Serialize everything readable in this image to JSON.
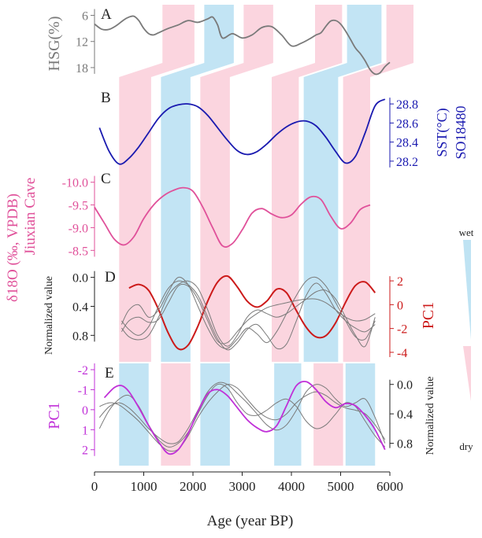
{
  "colors": {
    "pink": "#fbd3dd",
    "blue": "#bfe3f3",
    "gray": "#7a7a7a",
    "navy": "#1a1ab0",
    "magenta": "#e0519a",
    "red": "#cc1a1a",
    "purple": "#c030d8",
    "dark": "#222222"
  },
  "chart_data": {
    "type": "line",
    "xlabel": "Age (year BP)",
    "xlim": [
      0,
      6000
    ],
    "xticks": [
      0,
      1000,
      2000,
      3000,
      4000,
      5000,
      6000
    ],
    "panels": [
      {
        "letter": "A",
        "ylabel": "HSG(%)",
        "ylabel_side": "left",
        "ylabel_color": "gray",
        "yticks": [
          6,
          12,
          18
        ],
        "ylim": [
          5,
          20
        ],
        "reversed": true,
        "series": [
          {
            "color": "gray",
            "x": [
              0,
              150,
              300,
              450,
              600,
              700,
              800,
              900,
              1000,
              1100,
              1200,
              1300,
              1500,
              1700,
              1900,
              2100,
              2300,
              2400,
              2500,
              2600,
              2800,
              3000,
              3200,
              3400,
              3600,
              3800,
              4000,
              4200,
              4400,
              4500,
              4600,
              4700,
              4800,
              4900,
              5000,
              5100,
              5200,
              5300,
              5400,
              5500,
              5600,
              5700,
              5800,
              5900,
              6000
            ],
            "y": [
              8,
              9.2,
              9.2,
              8.3,
              7,
              6.4,
              6.2,
              7.2,
              9,
              10.2,
              10.5,
              10,
              9,
              8.2,
              7.2,
              7.6,
              6.8,
              6.4,
              8.2,
              11.2,
              10.2,
              11.2,
              10.5,
              8.8,
              8.6,
              10.5,
              13,
              12.4,
              11.2,
              10.5,
              10,
              8.5,
              7.3,
              7.2,
              8,
              9.6,
              11.5,
              13.5,
              14.8,
              16.5,
              18.5,
              19.5,
              19.2,
              17.8,
              16.8
            ]
          }
        ]
      },
      {
        "letter": "B",
        "ylabel": "SST(°C)",
        "ylabel2": "SO18480",
        "ylabel_side": "right",
        "ylabel_color": "navy",
        "yticks": [
          28.2,
          28.4,
          28.6,
          28.8
        ],
        "ylim": [
          28.1,
          28.9
        ],
        "reversed": false,
        "series": [
          {
            "color": "navy",
            "x": [
              100,
              300,
              500,
              700,
              900,
              1100,
              1300,
              1500,
              1700,
              1900,
              2100,
              2300,
              2500,
              2700,
              2900,
              3100,
              3300,
              3500,
              3700,
              3900,
              4100,
              4300,
              4500,
              4700,
              4900,
              5100,
              5300,
              5500,
              5700,
              5900
            ],
            "y": [
              28.55,
              28.3,
              28.17,
              28.23,
              28.35,
              28.5,
              28.65,
              28.75,
              28.79,
              28.8,
              28.77,
              28.68,
              28.55,
              28.42,
              28.31,
              28.27,
              28.3,
              28.38,
              28.48,
              28.56,
              28.61,
              28.62,
              28.57,
              28.45,
              28.3,
              28.18,
              28.25,
              28.5,
              28.78,
              28.85
            ]
          }
        ]
      },
      {
        "letter": "C",
        "ylabel": "δ18O (‰, VPDB)",
        "ylabel2": "Jiuxian Cave",
        "ylabel_side": "left",
        "ylabel_color": "magenta",
        "yticks": [
          -10.0,
          -9.5,
          -9.0,
          -8.5
        ],
        "ylim": [
          -10.15,
          -8.35
        ],
        "reversed": true,
        "series": [
          {
            "color": "magenta",
            "x": [
              0,
              200,
              400,
              600,
              800,
              1000,
              1200,
              1400,
              1600,
              1800,
              2000,
              2200,
              2400,
              2600,
              2800,
              3000,
              3200,
              3400,
              3600,
              3800,
              4000,
              4200,
              4400,
              4600,
              4800,
              5000,
              5200,
              5400,
              5600
            ],
            "y": [
              -9.45,
              -9.1,
              -8.75,
              -8.62,
              -8.8,
              -9.2,
              -9.5,
              -9.7,
              -9.82,
              -9.88,
              -9.8,
              -9.45,
              -9.0,
              -8.6,
              -8.65,
              -8.95,
              -9.32,
              -9.42,
              -9.3,
              -9.22,
              -9.28,
              -9.52,
              -9.68,
              -9.62,
              -9.25,
              -8.98,
              -9.1,
              -9.4,
              -9.5
            ]
          }
        ]
      },
      {
        "letter": "D",
        "ylabel": "Normalized value",
        "ylabel_side": "left",
        "yticks": [
          0.0,
          0.4,
          0.8
        ],
        "ylim": [
          -0.05,
          1.1
        ],
        "reversed": true,
        "ylabel_r": "PC1",
        "ylabel_r_color": "red",
        "yticks_r": [
          -4,
          -2,
          0,
          2
        ],
        "ylim_r": [
          -4.4,
          2.6
        ],
        "series": [
          {
            "color": "gray",
            "x": [
              550,
              700,
              900,
              1100,
              1300,
              1500,
              1700,
              1900,
              2100,
              2300,
              2500,
              2700,
              2900,
              3100,
              3300,
              3500,
              3700,
              3900,
              4100,
              4300,
              4500,
              4700,
              4900,
              5100,
              5300,
              5500,
              5700
            ],
            "y": [
              0.6,
              0.72,
              0.8,
              0.68,
              0.4,
              0.15,
              0.05,
              0.1,
              0.25,
              0.55,
              0.85,
              1.0,
              0.9,
              0.72,
              0.65,
              0.8,
              0.98,
              0.92,
              0.6,
              0.25,
              0.08,
              0.22,
              0.45,
              0.6,
              0.7,
              0.75,
              0.65
            ]
          },
          {
            "color": "gray",
            "x": [
              550,
              700,
              900,
              1100,
              1300,
              1500,
              1700,
              1900,
              2100,
              2300,
              2500,
              2700,
              2900,
              3100,
              3300,
              3500,
              3700,
              3900,
              4100,
              4300,
              4500,
              4700,
              4900,
              5100,
              5300,
              5500,
              5700
            ],
            "y": [
              0.65,
              0.45,
              0.38,
              0.55,
              0.45,
              0.2,
              0.0,
              0.1,
              0.4,
              0.7,
              0.92,
              0.98,
              0.85,
              0.7,
              0.78,
              0.9,
              0.75,
              0.5,
              0.25,
              0.05,
              0.0,
              0.12,
              0.35,
              0.6,
              0.82,
              0.85,
              0.6
            ]
          },
          {
            "color": "gray",
            "x": [
              550,
              700,
              900,
              1100,
              1300,
              1500,
              1700,
              1900,
              2100,
              2300,
              2500,
              2700,
              2900,
              3100,
              3300,
              3500,
              3700,
              3900,
              4100,
              4300,
              4500,
              4700,
              4900,
              5100,
              5300,
              5500,
              5700
            ],
            "y": [
              0.7,
              0.82,
              0.86,
              0.8,
              0.55,
              0.25,
              0.1,
              0.05,
              0.15,
              0.45,
              0.8,
              0.95,
              0.8,
              0.55,
              0.45,
              0.5,
              0.55,
              0.5,
              0.4,
              0.3,
              0.2,
              0.18,
              0.3,
              0.55,
              0.8,
              0.95,
              0.55
            ]
          },
          {
            "color": "gray",
            "x": [
              550,
              700,
              900,
              1100,
              1300,
              1500,
              1700,
              1900,
              2100,
              2300,
              2500,
              2700,
              2900,
              3100,
              3300,
              3500,
              3700,
              3900,
              4100,
              4300,
              4500,
              4700,
              4900,
              5100,
              5300,
              5500,
              5700
            ],
            "y": [
              0.75,
              0.6,
              0.55,
              0.62,
              0.58,
              0.35,
              0.12,
              0.12,
              0.3,
              0.6,
              0.88,
              0.9,
              0.75,
              0.6,
              0.5,
              0.42,
              0.38,
              0.35,
              0.32,
              0.3,
              0.3,
              0.35,
              0.45,
              0.55,
              0.6,
              0.58,
              0.5
            ]
          }
        ],
        "series_r": [
          {
            "color": "red",
            "x": [
              700,
              900,
              1100,
              1300,
              1500,
              1700,
              1900,
              2100,
              2300,
              2500,
              2700,
              2900,
              3100,
              3300,
              3500,
              3700,
              3900,
              4100,
              4300,
              4500,
              4700,
              4900,
              5100,
              5300,
              5500,
              5700
            ],
            "y": [
              1.4,
              1.7,
              1.2,
              -0.4,
              -2.4,
              -3.7,
              -3.4,
              -1.8,
              0.3,
              1.9,
              2.4,
              1.5,
              0.3,
              -0.2,
              0.3,
              1.3,
              1.0,
              -0.5,
              -1.9,
              -2.7,
              -2.6,
              -1.5,
              0.2,
              1.6,
              1.9,
              1.0
            ]
          }
        ]
      },
      {
        "letter": "E",
        "ylabel": "PC1",
        "ylabel_side": "left",
        "ylabel_color": "purple",
        "yticks": [
          -2,
          -1,
          0,
          1,
          2
        ],
        "ylim": [
          -2,
          2.6
        ],
        "reversed": false,
        "inverted_display": true,
        "ylabel_r": "Normalized value",
        "yticks_r": [
          0.0,
          0.4,
          0.8
        ],
        "ylim_r": [
          -0.2,
          1.05
        ],
        "series": [
          {
            "color": "purple",
            "x": [
              200,
              400,
              550,
              700,
              900,
              1100,
              1300,
              1500,
              1700,
              1900,
              2100,
              2300,
              2500,
              2700,
              2900,
              3100,
              3300,
              3500,
              3700,
              3900,
              4100,
              4300,
              4500,
              4700,
              4900,
              5100,
              5300,
              5500,
              5700,
              5900
            ],
            "y": [
              -0.6,
              -1.1,
              -1.2,
              -0.9,
              -0.1,
              0.8,
              1.6,
              2.2,
              2.0,
              1.2,
              0.1,
              -0.8,
              -1.0,
              -0.7,
              -0.1,
              0.5,
              0.9,
              1.1,
              0.8,
              -0.2,
              -1.2,
              -1.4,
              -1.0,
              -0.4,
              -0.1,
              -0.3,
              -0.2,
              0.3,
              1.0,
              2.0
            ]
          }
        ],
        "series_r": [
          {
            "color": "gray",
            "x": [
              100,
              300,
              500,
              700,
              900,
              1100,
              1300,
              1500,
              1700,
              1900,
              2100,
              2300,
              2500,
              2700,
              2900,
              3100,
              3300,
              3500,
              3700,
              3900,
              4100,
              4300,
              4500,
              4700,
              4900,
              5100,
              5300,
              5500,
              5700,
              5900
            ],
            "y": [
              0.6,
              0.35,
              0.2,
              0.15,
              0.3,
              0.55,
              0.75,
              0.85,
              0.8,
              0.65,
              0.4,
              0.15,
              0.0,
              0.05,
              0.25,
              0.4,
              0.42,
              0.35,
              0.25,
              0.2,
              0.3,
              0.5,
              0.6,
              0.55,
              0.4,
              0.25,
              0.3,
              0.5,
              0.7,
              0.85
            ]
          },
          {
            "color": "gray",
            "x": [
              100,
              300,
              500,
              700,
              900,
              1100,
              1300,
              1500,
              1700,
              1900,
              2100,
              2300,
              2500,
              2700,
              2900,
              3100,
              3300,
              3500,
              3700,
              3900,
              4100,
              4300,
              4500,
              4700,
              4900,
              5100,
              5300,
              5500,
              5700,
              5900
            ],
            "y": [
              0.45,
              0.3,
              0.25,
              0.32,
              0.45,
              0.6,
              0.72,
              0.8,
              0.78,
              0.6,
              0.35,
              0.1,
              -0.02,
              0.0,
              0.12,
              0.25,
              0.4,
              0.55,
              0.62,
              0.55,
              0.35,
              0.1,
              0.0,
              0.05,
              0.2,
              0.3,
              0.25,
              0.2,
              0.45,
              0.8
            ]
          },
          {
            "color": "gray",
            "x": [
              100,
              300,
              500,
              700,
              900,
              1100,
              1300,
              1500,
              1700,
              1900,
              2100,
              2300,
              2500,
              2700,
              2900,
              3100,
              3300,
              3500,
              3700,
              3900,
              4100,
              4300,
              4500,
              4700,
              4900,
              5100,
              5300,
              5500,
              5700,
              5900
            ],
            "y": [
              0.3,
              0.25,
              0.28,
              0.38,
              0.5,
              0.65,
              0.8,
              0.9,
              0.88,
              0.7,
              0.45,
              0.25,
              0.1,
              0.0,
              0.05,
              0.2,
              0.35,
              0.45,
              0.48,
              0.4,
              0.25,
              0.15,
              0.1,
              0.15,
              0.25,
              0.32,
              0.35,
              0.4,
              0.55,
              0.75
            ]
          }
        ]
      }
    ],
    "bands_top": [
      {
        "color": "pink",
        "x": [
          500,
          1150
        ]
      },
      {
        "color": "blue",
        "x": [
          1350,
          1950
        ]
      },
      {
        "color": "pink",
        "x": [
          2150,
          2750
        ]
      },
      {
        "color": "pink",
        "x": [
          3600,
          4150
        ]
      },
      {
        "color": "blue",
        "x": [
          4250,
          4950
        ]
      },
      {
        "color": "pink",
        "x": [
          5050,
          5600
        ]
      }
    ],
    "bands_bottom": [
      {
        "color": "blue",
        "x": [
          500,
          1100
        ]
      },
      {
        "color": "pink",
        "x": [
          1350,
          1950
        ]
      },
      {
        "color": "blue",
        "x": [
          2150,
          2750
        ]
      },
      {
        "color": "blue",
        "x": [
          3650,
          4200
        ]
      },
      {
        "color": "pink",
        "x": [
          4450,
          5050
        ]
      },
      {
        "color": "blue",
        "x": [
          5100,
          5700
        ]
      }
    ],
    "legend": {
      "wet": "wet",
      "dry": "dry",
      "placement": "right"
    }
  }
}
